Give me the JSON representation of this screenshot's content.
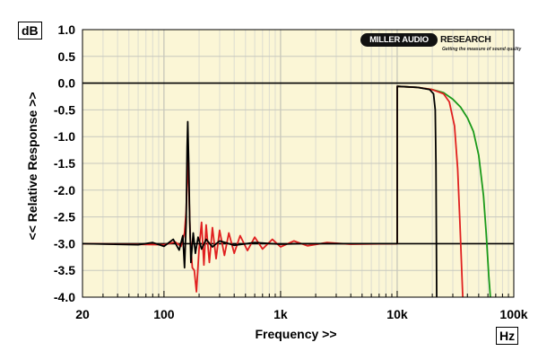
{
  "chart_data": {
    "type": "line",
    "ylabel": "<< Relative Response >>",
    "xlabel": "Frequency >>",
    "y_unit": "dB",
    "x_unit": "Hz",
    "x_scale": "log",
    "xlim": [
      20,
      100000
    ],
    "ylim": [
      -4.0,
      1.0
    ],
    "x_tick_labels": [
      "20",
      "100",
      "1k",
      "10k",
      "100k"
    ],
    "x_tick_values": [
      20,
      100,
      1000,
      10000,
      100000
    ],
    "y_tick_labels": [
      "1.0",
      "0.5",
      "0.0",
      "-0.5",
      "-1.0",
      "-1.5",
      "-2.0",
      "-2.5",
      "-3.0",
      "-3.5",
      "-4.0"
    ],
    "y_tick_values": [
      1.0,
      0.5,
      0.0,
      -0.5,
      -1.0,
      -1.5,
      -2.0,
      -2.5,
      -3.0,
      -3.5,
      -4.0
    ],
    "grid": true,
    "background": "#fbf6d6",
    "reference_lines": [
      {
        "y": 0.0,
        "color": "#000000"
      },
      {
        "y": -3.0,
        "color": "#000000"
      }
    ],
    "series": [
      {
        "color": "#1a9a1a",
        "points": [
          [
            10000,
            -0.06
          ],
          [
            15000,
            -0.08
          ],
          [
            20000,
            -0.12
          ],
          [
            25000,
            -0.18
          ],
          [
            30000,
            -0.3
          ],
          [
            35000,
            -0.45
          ],
          [
            40000,
            -0.65
          ],
          [
            45000,
            -0.9
          ],
          [
            50000,
            -1.35
          ],
          [
            55000,
            -2.1
          ],
          [
            58000,
            -2.8
          ],
          [
            61000,
            -3.6
          ],
          [
            63000,
            -4.0
          ]
        ]
      },
      {
        "color": "#e02020",
        "points": [
          [
            20,
            -3.0
          ],
          [
            100,
            -3.02
          ],
          [
            125,
            -2.97
          ],
          [
            140,
            -3.05
          ],
          [
            150,
            -2.8
          ],
          [
            155,
            -2.4
          ],
          [
            160,
            -1.4
          ],
          [
            163,
            -1.9
          ],
          [
            168,
            -2.9
          ],
          [
            175,
            -3.45
          ],
          [
            182,
            -3.5
          ],
          [
            190,
            -3.9
          ],
          [
            200,
            -3.1
          ],
          [
            210,
            -2.6
          ],
          [
            220,
            -3.4
          ],
          [
            230,
            -2.65
          ],
          [
            245,
            -3.35
          ],
          [
            260,
            -2.7
          ],
          [
            280,
            -3.28
          ],
          [
            300,
            -2.75
          ],
          [
            330,
            -3.22
          ],
          [
            360,
            -2.8
          ],
          [
            400,
            -3.18
          ],
          [
            450,
            -2.85
          ],
          [
            520,
            -3.13
          ],
          [
            600,
            -2.88
          ],
          [
            700,
            -3.1
          ],
          [
            850,
            -2.92
          ],
          [
            1000,
            -3.06
          ],
          [
            1300,
            -2.95
          ],
          [
            1700,
            -3.04
          ],
          [
            2500,
            -2.98
          ],
          [
            4000,
            -3.01
          ],
          [
            10000,
            -3.0
          ],
          [
            10001,
            -0.06
          ],
          [
            15000,
            -0.08
          ],
          [
            20000,
            -0.12
          ],
          [
            25000,
            -0.2
          ],
          [
            28000,
            -0.35
          ],
          [
            31000,
            -0.8
          ],
          [
            33000,
            -1.6
          ],
          [
            34500,
            -2.6
          ],
          [
            35500,
            -3.3
          ],
          [
            36500,
            -4.0
          ]
        ]
      },
      {
        "color": "#000000",
        "points": [
          [
            20,
            -3.0
          ],
          [
            60,
            -3.02
          ],
          [
            80,
            -2.98
          ],
          [
            100,
            -3.05
          ],
          [
            120,
            -2.92
          ],
          [
            135,
            -3.12
          ],
          [
            145,
            -2.85
          ],
          [
            150,
            -3.45
          ],
          [
            155,
            -2.6
          ],
          [
            158,
            -1.2
          ],
          [
            160,
            -0.72
          ],
          [
            163,
            -1.5
          ],
          [
            166,
            -2.5
          ],
          [
            170,
            -3.35
          ],
          [
            178,
            -2.8
          ],
          [
            186,
            -3.18
          ],
          [
            196,
            -2.88
          ],
          [
            210,
            -3.1
          ],
          [
            230,
            -2.92
          ],
          [
            260,
            -3.06
          ],
          [
            300,
            -2.95
          ],
          [
            400,
            -3.03
          ],
          [
            600,
            -2.98
          ],
          [
            1000,
            -3.01
          ],
          [
            1500,
            -3.0
          ],
          [
            10000,
            -3.0
          ],
          [
            10001,
            -0.06
          ],
          [
            15000,
            -0.08
          ],
          [
            19000,
            -0.12
          ],
          [
            20500,
            -0.2
          ],
          [
            21200,
            -0.5
          ],
          [
            21500,
            -1.5
          ],
          [
            21700,
            -3.0
          ],
          [
            21800,
            -4.0
          ]
        ]
      }
    ]
  },
  "logo": {
    "pill": "MILLER AUDIO",
    "word": "RESEARCH",
    "tagline": "Getting the measure of sound quality"
  }
}
